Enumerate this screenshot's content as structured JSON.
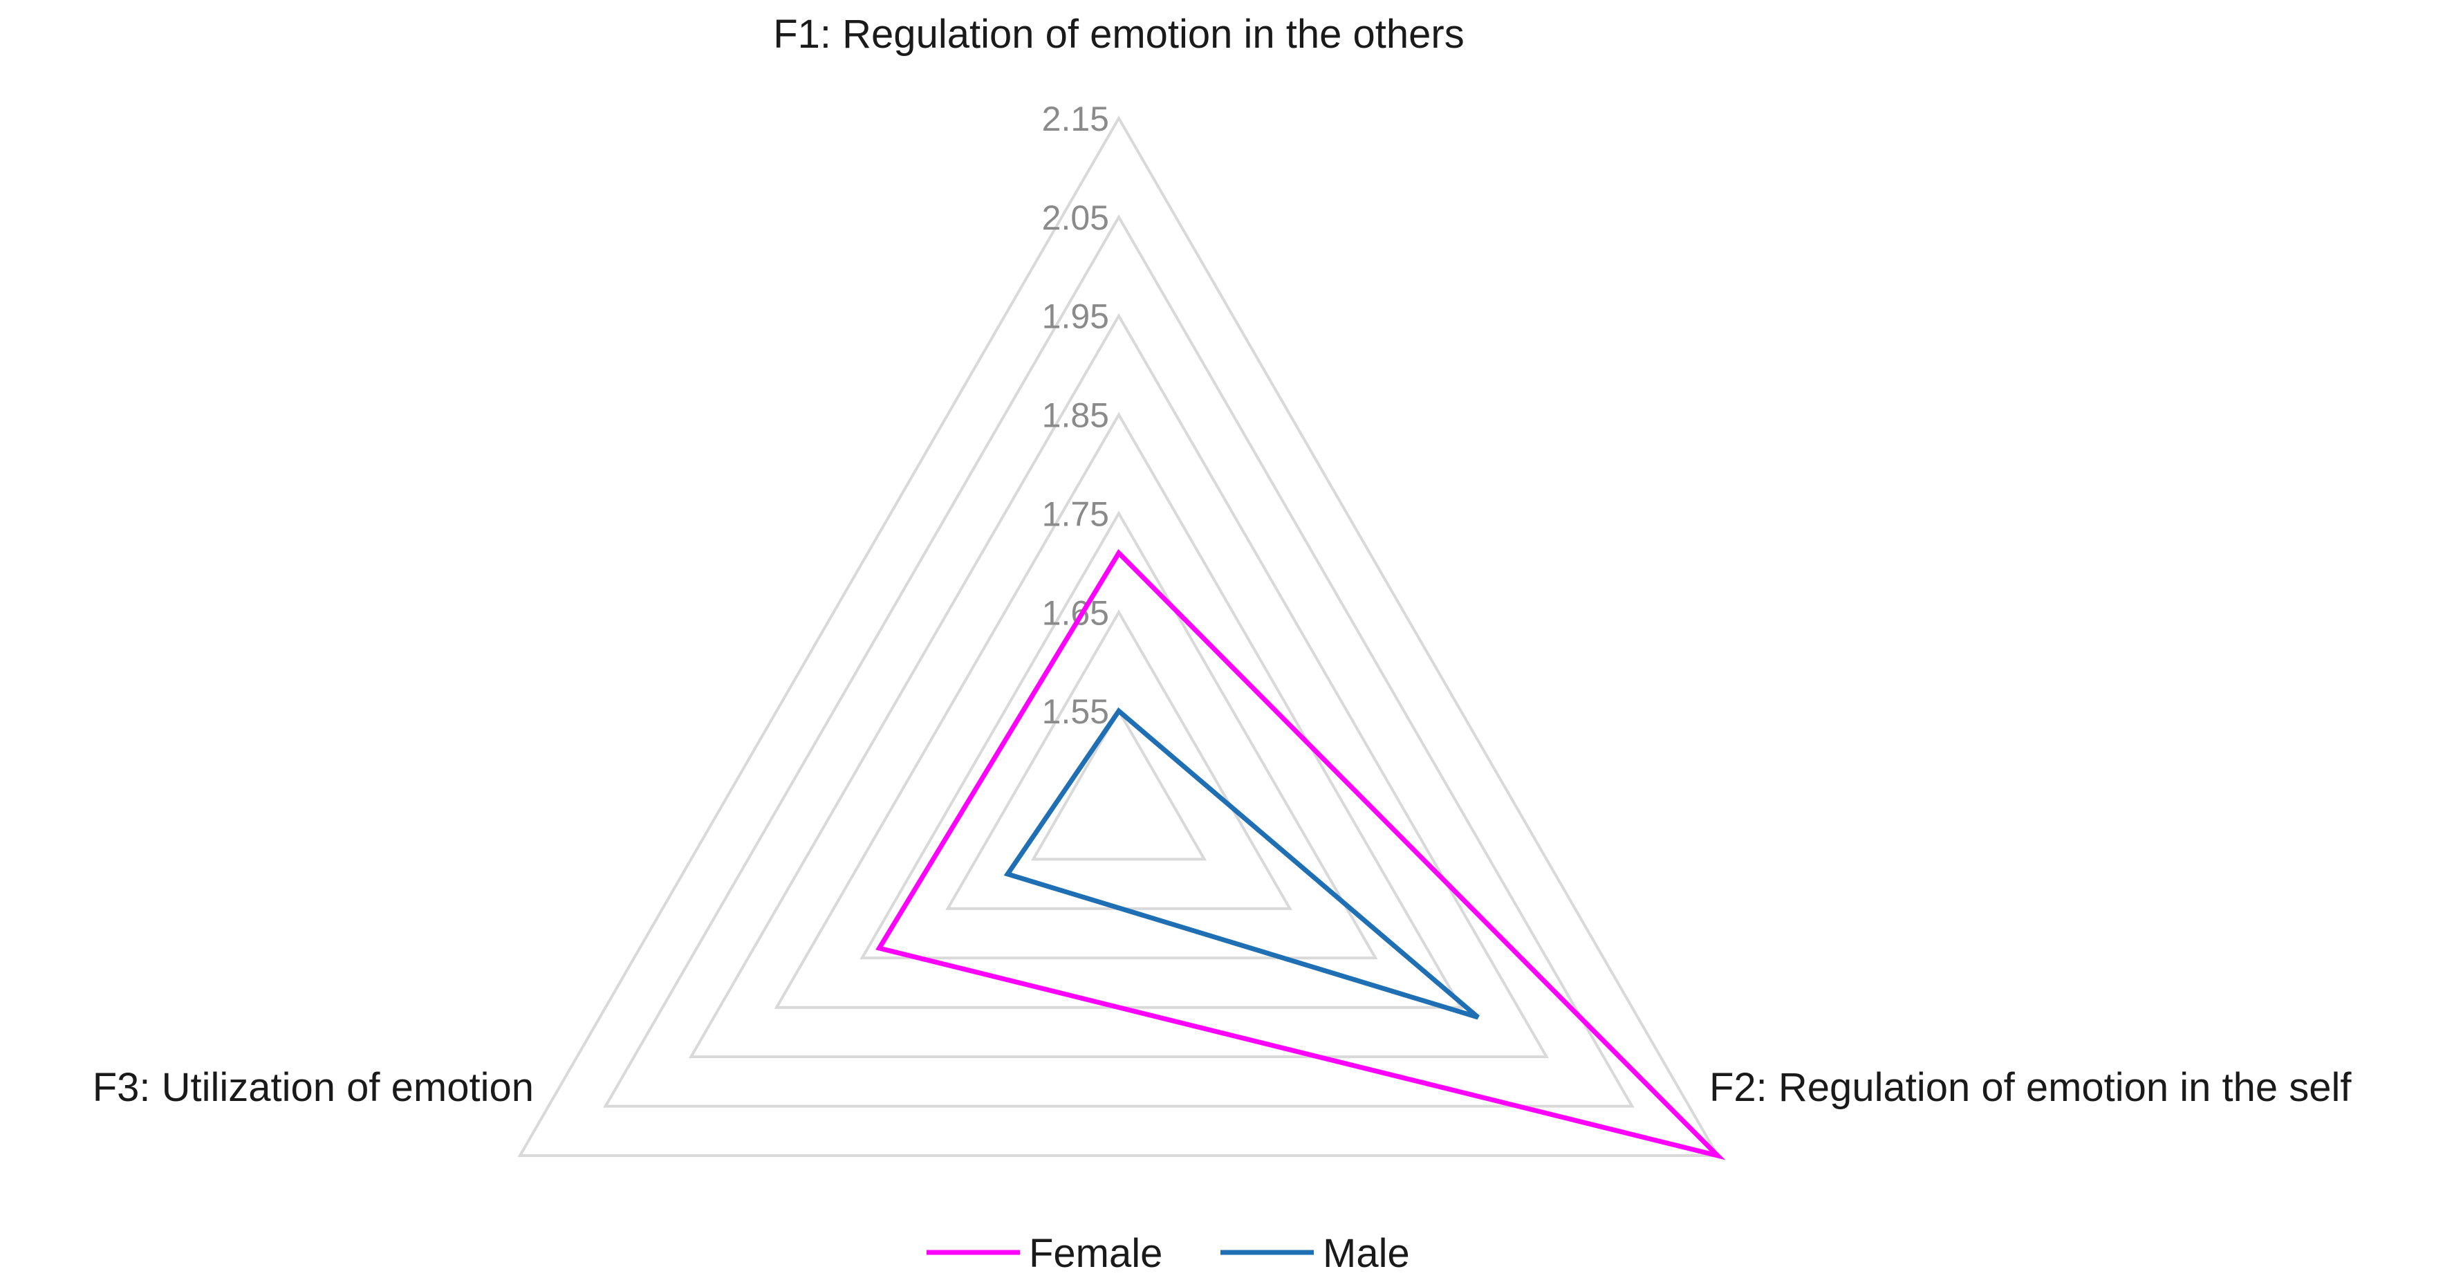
{
  "chart_data": {
    "type": "radar",
    "title": "",
    "axes": [
      "F1: Regulation of emotion in the others",
      "F2: Regulation of emotion in the self",
      "F3: Utilization of emotion"
    ],
    "ticks": [
      "1.55",
      "1.65",
      "1.75",
      "1.85",
      "1.95",
      "2.05",
      "2.15"
    ],
    "range": [
      1.45,
      2.15
    ],
    "grid_levels": [
      1.55,
      1.65,
      1.75,
      1.85,
      1.95,
      2.05,
      2.15
    ],
    "legend_position": "bottom",
    "series": [
      {
        "name": "Female",
        "color": "#ff00ff",
        "values": [
          1.71,
          2.15,
          1.73
        ]
      },
      {
        "name": "Male",
        "color": "#1f6fb4",
        "values": [
          1.55,
          1.87,
          1.58
        ]
      }
    ]
  }
}
